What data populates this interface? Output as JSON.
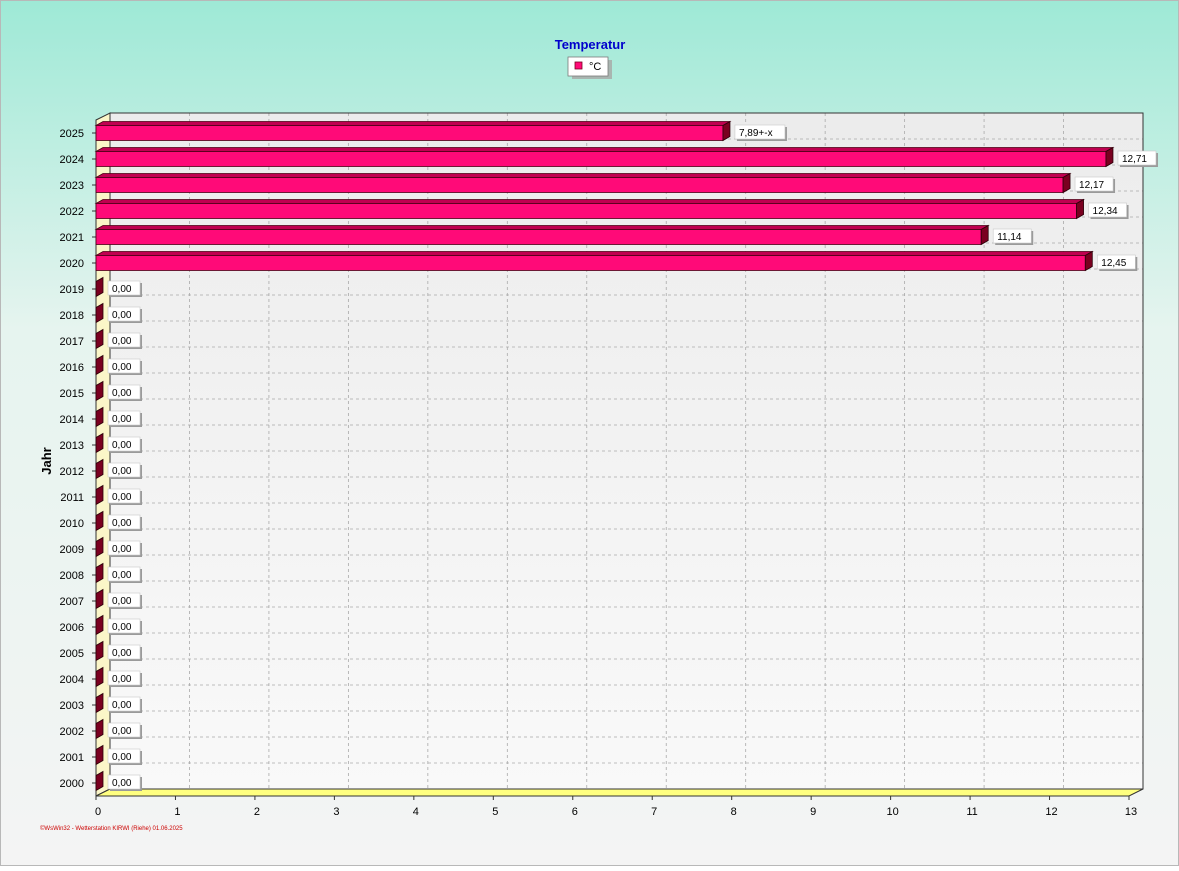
{
  "chart_data": {
    "type": "bar",
    "orientation": "horizontal",
    "title": "Temperatur",
    "ylabel": "Jahr",
    "xlabel": "",
    "xlim": [
      0,
      13
    ],
    "x_ticks": [
      "0",
      "1",
      "2",
      "3",
      "4",
      "5",
      "6",
      "7",
      "8",
      "9",
      "10",
      "11",
      "12",
      "13"
    ],
    "grid": true,
    "legend_position": "top-center",
    "categories": [
      "2000",
      "2001",
      "2002",
      "2003",
      "2004",
      "2005",
      "2006",
      "2007",
      "2008",
      "2009",
      "2010",
      "2011",
      "2012",
      "2013",
      "2014",
      "2015",
      "2016",
      "2017",
      "2018",
      "2019",
      "2020",
      "2021",
      "2022",
      "2023",
      "2024",
      "2025"
    ],
    "series": [
      {
        "name": "°C",
        "color": "#ff0a78",
        "values": [
          0,
          0,
          0,
          0,
          0,
          0,
          0,
          0,
          0,
          0,
          0,
          0,
          0,
          0,
          0,
          0,
          0,
          0,
          0,
          0,
          12.45,
          11.14,
          12.34,
          12.17,
          12.71,
          7.89
        ],
        "labels": [
          "0,00",
          "0,00",
          "0,00",
          "0,00",
          "0,00",
          "0,00",
          "0,00",
          "0,00",
          "0,00",
          "0,00",
          "0,00",
          "0,00",
          "0,00",
          "0,00",
          "0,00",
          "0,00",
          "0,00",
          "0,00",
          "0,00",
          "0,00",
          "12,45",
          "11,14",
          "12,34",
          "12,17",
          "12,71",
          "7,89+-x"
        ]
      }
    ]
  },
  "footer": "©WsWin32 - Wetterstation KIRWI (Riehe)  01.06.2025",
  "colors": {
    "background_top": "#9ee9d6",
    "background_bottom": "#f4f4f4",
    "title": "#0000cc",
    "bar_front": "#ff0a78",
    "bar_side": "#7a0020",
    "wall": "#fbf6c8",
    "floor": "#ffff80",
    "footer": "#cc0000"
  }
}
